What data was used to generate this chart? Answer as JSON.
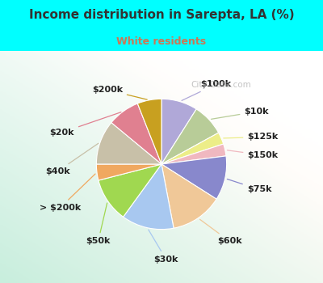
{
  "title": "Income distribution in Sarepta, LA (%)",
  "subtitle": "White residents",
  "title_color": "#333333",
  "subtitle_color": "#cc7755",
  "bg_color": "#00ffff",
  "chart_bg_left": "#c8eedd",
  "chart_bg_right": "#e8f8f8",
  "labels": [
    "$100k",
    "$10k",
    "$125k",
    "$150k",
    "$75k",
    "$60k",
    "$30k",
    "$50k",
    "> $200k",
    "$40k",
    "$20k",
    "$200k"
  ],
  "values": [
    9,
    8,
    3,
    3,
    11,
    13,
    13,
    11,
    4,
    11,
    8,
    6
  ],
  "colors": [
    "#b0a8d8",
    "#b8cc98",
    "#eced88",
    "#f0b8c0",
    "#8888cc",
    "#f0c898",
    "#a8c8f0",
    "#a0d850",
    "#f0a860",
    "#c8c0a8",
    "#e08090",
    "#c8a020"
  ],
  "label_fontsize": 8,
  "watermark": "City-Data.com",
  "startangle": 90
}
